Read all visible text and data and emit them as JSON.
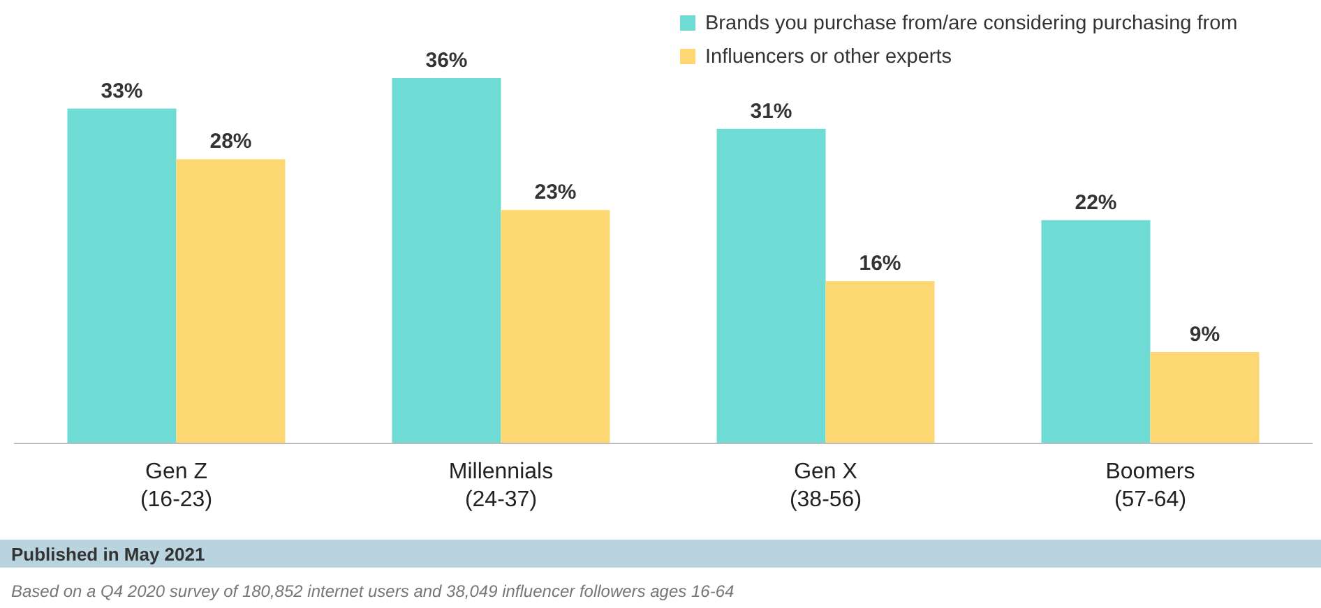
{
  "chart_data": {
    "type": "bar",
    "categories": [
      "Gen Z (16-23)",
      "Millennials (24-37)",
      "Gen X (38-56)",
      "Boomers (57-64)"
    ],
    "series": [
      {
        "name": "Brands you purchase from/are considering purchasing from",
        "color": "#6edbd5",
        "values": [
          33,
          36,
          31,
          22
        ],
        "value_labels": [
          "33%",
          "36%",
          "31%",
          "22%"
        ]
      },
      {
        "name": "Influencers or other experts",
        "color": "#fdd772",
        "values": [
          28,
          23,
          16,
          9
        ],
        "value_labels": [
          "28%",
          "23%",
          "16%",
          "9%"
        ]
      }
    ],
    "legend": "top right",
    "annotations": [
      "Published in May 2021",
      "Based on a Q4 2020 survey of 180,852 internet users and 38,049 influencer followers ages 16-64"
    ]
  }
}
